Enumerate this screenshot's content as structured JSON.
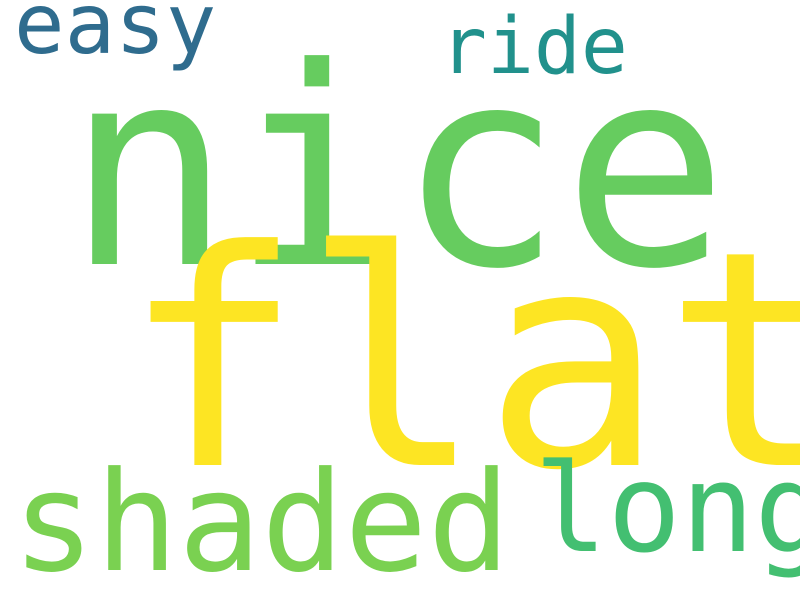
{
  "background_color": "#ffffff",
  "words": [
    {
      "text": "nice",
      "color": "#66cc5f"
    },
    {
      "text": "flat",
      "color": "#fde523"
    },
    {
      "text": "shaded",
      "color": "#7ad151"
    },
    {
      "text": "long",
      "color": "#43bf71"
    },
    {
      "text": "ride",
      "color": "#21918c"
    },
    {
      "text": "easy",
      "color": "#2f6c8e"
    }
  ]
}
